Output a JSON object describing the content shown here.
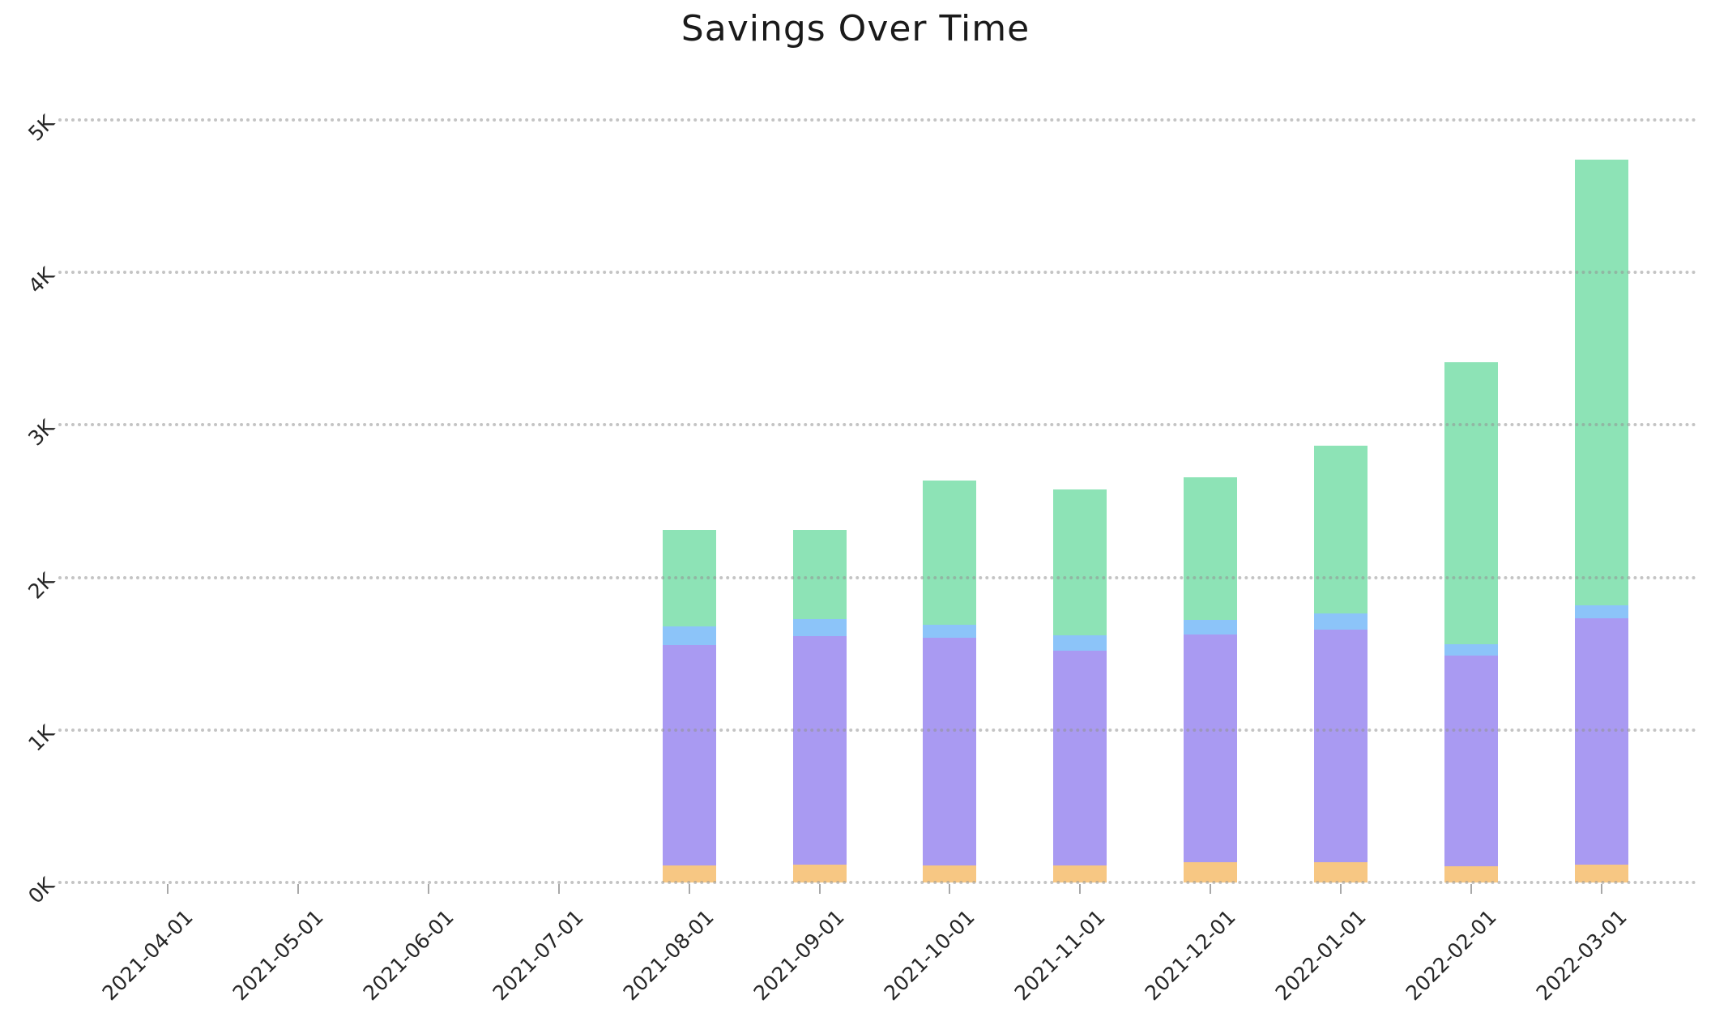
{
  "chart": {
    "title": "Savings Over Time"
  },
  "chart_data": {
    "type": "bar",
    "stacked": true,
    "title": "Savings Over Time",
    "xlabel": "",
    "ylabel": "",
    "legend": "none",
    "grid": "horizontal-dotted",
    "ylim": [
      0,
      5000
    ],
    "ytick_labels": [
      "0K",
      "1K",
      "2K",
      "3K",
      "4K",
      "5K"
    ],
    "ytick_values": [
      0,
      1000,
      2000,
      3000,
      4000,
      5000
    ],
    "categories": [
      "2021-04-01",
      "2021-05-01",
      "2021-06-01",
      "2021-07-01",
      "2021-08-01",
      "2021-09-01",
      "2021-10-01",
      "2021-11-01",
      "2021-12-01",
      "2022-01-01",
      "2022-02-01",
      "2022-03-01"
    ],
    "series": [
      {
        "name": "orange-segment",
        "color": "#F7C783",
        "values": [
          0,
          0,
          0,
          0,
          112,
          115,
          113,
          113,
          133,
          131,
          108,
          117
        ]
      },
      {
        "name": "purple-segment",
        "color": "#A99AF2",
        "values": [
          0,
          0,
          0,
          0,
          1447,
          1500,
          1492,
          1405,
          1491,
          1528,
          1380,
          1614
        ]
      },
      {
        "name": "blue-segment",
        "color": "#8CC4F9",
        "values": [
          0,
          0,
          0,
          0,
          122,
          113,
          83,
          103,
          97,
          105,
          74,
          85
        ]
      },
      {
        "name": "green-segment",
        "color": "#8DE3B6",
        "values": [
          0,
          0,
          0,
          0,
          632,
          585,
          946,
          956,
          935,
          1100,
          1851,
          2926
        ]
      }
    ],
    "stack_totals": [
      0,
      0,
      0,
      0,
      2313,
      2313,
      2634,
      2577,
      2656,
      2864,
      3413,
      4742
    ]
  },
  "colors": {
    "background": "#ffffff",
    "grid": "#bdbdbd",
    "axis_tick": "#a8a8a8",
    "text": "#262626"
  }
}
